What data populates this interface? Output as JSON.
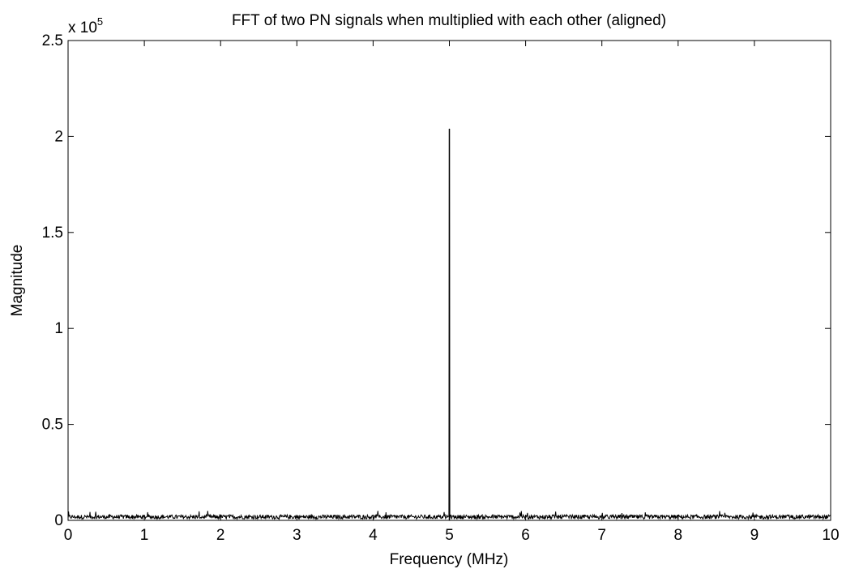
{
  "chart_data": {
    "type": "line",
    "title": "FFT of two PN signals when multiplied with each other (aligned)",
    "xlabel": "Frequency (MHz)",
    "ylabel": "Magnitude",
    "y_multiplier_label": {
      "base": "x 10",
      "exponent": "5"
    },
    "y_scale": 100000,
    "xlim": [
      0,
      10
    ],
    "ylim": [
      0,
      250000
    ],
    "x_ticks": [
      0,
      1,
      2,
      3,
      4,
      5,
      6,
      7,
      8,
      9,
      10
    ],
    "x_tick_labels": [
      "0",
      "1",
      "2",
      "3",
      "4",
      "5",
      "6",
      "7",
      "8",
      "9",
      "10"
    ],
    "y_ticks": [
      0,
      50000,
      100000,
      150000,
      200000,
      250000
    ],
    "y_tick_labels": [
      "0",
      "0.5",
      "1",
      "1.5",
      "2",
      "2.5"
    ],
    "grid": false,
    "line_color": "#000000",
    "series": [
      {
        "noise_floor": {
          "x_range": [
            0,
            10
          ],
          "typical_magnitude": 2000,
          "max_magnitude": 5000
        },
        "peaks": [
          {
            "x": 5.0,
            "y": 204000
          }
        ]
      }
    ]
  }
}
